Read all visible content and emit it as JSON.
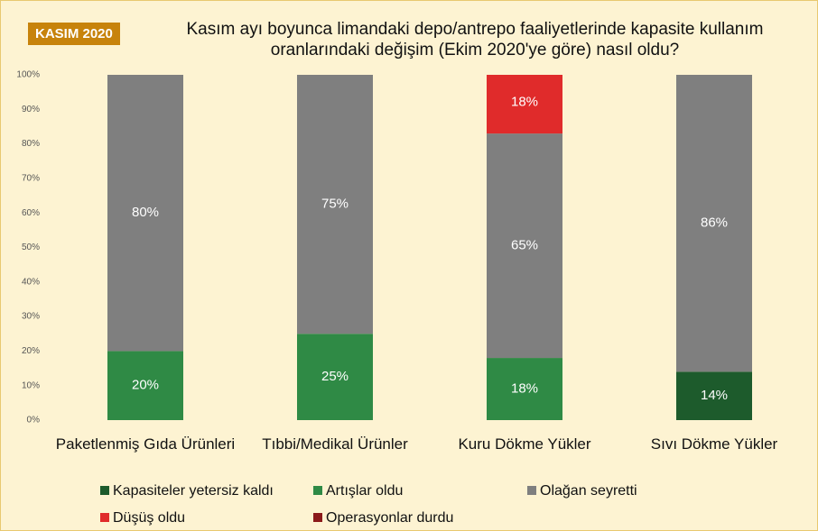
{
  "badge": "KASIM 2020",
  "chart_data": {
    "type": "stacked_bar",
    "title": "Kasım ayı boyunca limandaki depo/antrepo faaliyetlerinde kapasite kullanım oranlarındaki değişim (Ekim 2020'ye göre) nasıl oldu?",
    "categories": [
      "Paketlenmiş Gıda Ürünleri",
      "Tıbbi/Medikal Ürünler",
      "Kuru Dökme Yükler",
      "Sıvı Dökme Yükler"
    ],
    "series": [
      {
        "name": "Kapasiteler yetersiz kaldı",
        "color": "#1d5b2c",
        "values": [
          0,
          0,
          0,
          14
        ],
        "value_labels": [
          null,
          null,
          null,
          "14%"
        ]
      },
      {
        "name": "Artışlar oldu",
        "color": "#2f8a45",
        "values": [
          20,
          25,
          18,
          0
        ],
        "value_labels": [
          "20%",
          "25%",
          "18%",
          null
        ]
      },
      {
        "name": "Olağan seyretti",
        "color": "#7f7f7f",
        "values": [
          80,
          75,
          65,
          86
        ],
        "value_labels": [
          "80%",
          "75%",
          "65%",
          "86%"
        ]
      },
      {
        "name": "Düşüş oldu",
        "color": "#e02b2b",
        "values": [
          0,
          0,
          18,
          0
        ],
        "value_labels": [
          null,
          null,
          "18%",
          null
        ]
      },
      {
        "name": "Operasyonlar durdu",
        "color": "#8b1a1a",
        "values": [
          0,
          0,
          0,
          0
        ],
        "value_labels": [
          null,
          null,
          null,
          null
        ]
      }
    ],
    "ylim": [
      0,
      100
    ],
    "yticks": [
      {
        "value": 0,
        "label": "0%"
      },
      {
        "value": 10,
        "label": "10%"
      },
      {
        "value": 20,
        "label": "20%"
      },
      {
        "value": 30,
        "label": "30%"
      },
      {
        "value": 40,
        "label": "40%"
      },
      {
        "value": 50,
        "label": "50%"
      },
      {
        "value": 60,
        "label": "60%"
      },
      {
        "value": 70,
        "label": "70%"
      },
      {
        "value": 80,
        "label": "80%"
      },
      {
        "value": 90,
        "label": "90%"
      },
      {
        "value": 100,
        "label": "100%"
      }
    ],
    "grid": false
  }
}
